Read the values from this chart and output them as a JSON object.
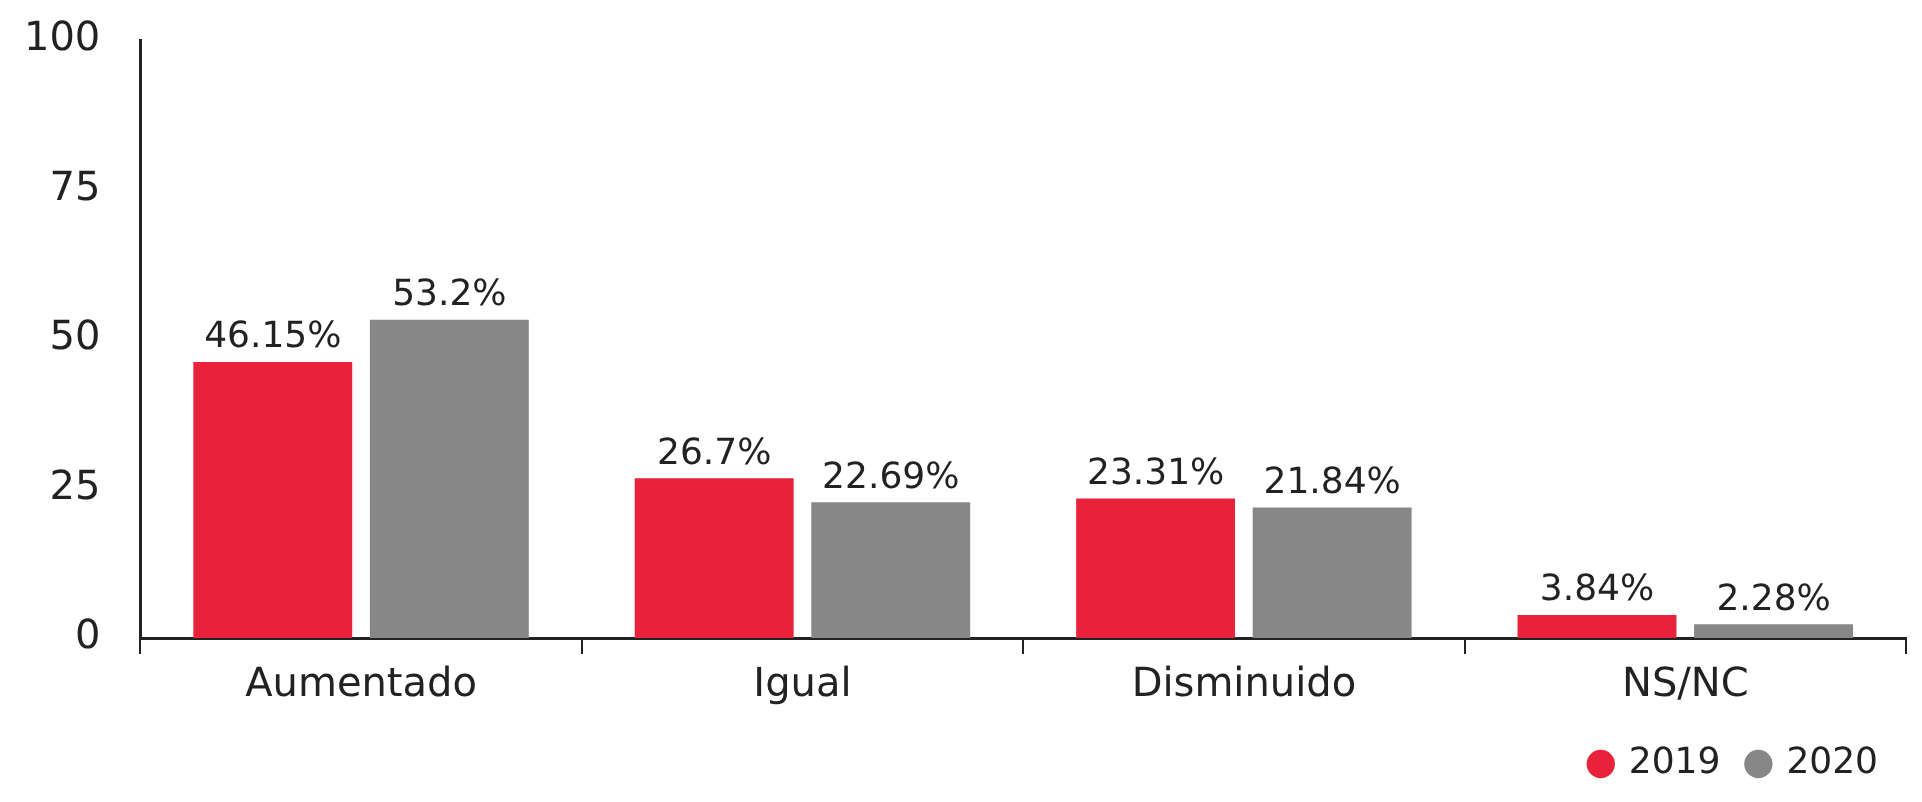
{
  "chart_data": {
    "type": "bar",
    "categories": [
      "Aumentado",
      "Igual",
      "Disminuido",
      "NS/NC"
    ],
    "series": [
      {
        "name": "2019",
        "color": "#e8223a",
        "values": [
          46.15,
          26.7,
          23.31,
          3.84
        ],
        "value_labels": [
          "46.15%",
          "26.7%",
          "23.31%",
          "3.84%"
        ]
      },
      {
        "name": "2020",
        "color": "#878787",
        "values": [
          53.2,
          22.69,
          21.84,
          2.28
        ],
        "value_labels": [
          "53.2%",
          "22.69%",
          "21.84%",
          "2.28%"
        ]
      }
    ],
    "ylim": [
      0,
      100
    ],
    "yticks": [
      0,
      25,
      50,
      75,
      100
    ],
    "grid": false,
    "legend": "bottom right"
  }
}
